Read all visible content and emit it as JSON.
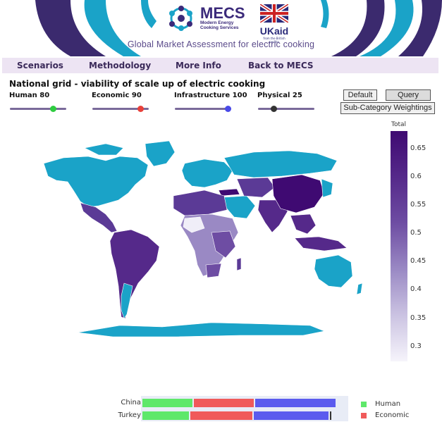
{
  "header": {
    "logo_title": "MECS",
    "logo_sub1": "Modern Energy",
    "logo_sub2": "Cooking Services",
    "ukaid_text": "UKaid",
    "ukaid_small": "from the British people",
    "page_title": "Global Market Assessment for electric cooking"
  },
  "nav": {
    "items": [
      {
        "label": "Scenarios"
      },
      {
        "label": "Methodology"
      },
      {
        "label": "More Info"
      },
      {
        "label": "Back to MECS"
      }
    ]
  },
  "map": {
    "title": "National grid - viability of scale up of electric cooking"
  },
  "sliders": [
    {
      "label": "Human 80",
      "value": 80,
      "color": "#2ecc40"
    },
    {
      "label": "Economic 90",
      "value": 90,
      "color": "#e8403a"
    },
    {
      "label": "Infrastructure 100",
      "value": 100,
      "color": "#4a4ae8"
    },
    {
      "label": "Physical 25",
      "value": 25,
      "color": "#333333"
    }
  ],
  "buttons": {
    "default": "Default",
    "query": "Query",
    "weightings": "Sub-Category Weightings"
  },
  "colorbar": {
    "title": "Total",
    "ticks": [
      "0.65",
      "0.6",
      "0.55",
      "0.5",
      "0.45",
      "0.4",
      "0.35",
      "0.3"
    ]
  },
  "bar_chart": {
    "rows": [
      {
        "label": "China"
      },
      {
        "label": "Turkey"
      }
    ],
    "legend": [
      {
        "name": "Human",
        "color": "#5ee86a"
      },
      {
        "name": "Economic",
        "color": "#f05a5a"
      }
    ],
    "colors": {
      "human": "#5ee86a",
      "economic": "#f05a5a",
      "infrastructure": "#5b5bee"
    }
  },
  "colors": {
    "ocean_country": "#1aa3c8",
    "dark_purple": "#3f0a72",
    "nav_bg": "#ede4f3"
  }
}
